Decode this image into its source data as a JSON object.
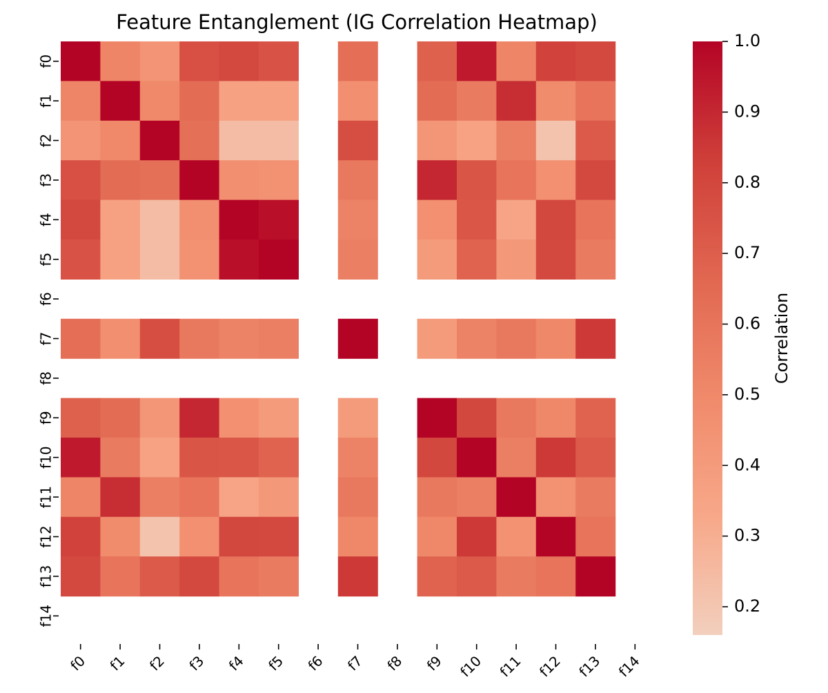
{
  "chart_data": {
    "type": "heatmap",
    "title": "Feature Entanglement (IG Correlation Heatmap)",
    "xlabel": "",
    "ylabel": "",
    "features": [
      "f0",
      "f1",
      "f2",
      "f3",
      "f4",
      "f5",
      "f6",
      "f7",
      "f8",
      "f9",
      "f10",
      "f11",
      "f12",
      "f13",
      "f14"
    ],
    "values": [
      [
        1.0,
        0.52,
        0.44,
        0.76,
        0.79,
        0.75,
        null,
        0.63,
        null,
        0.69,
        0.94,
        0.52,
        0.82,
        0.79,
        null
      ],
      [
        0.52,
        1.0,
        0.5,
        0.64,
        0.37,
        0.37,
        null,
        0.47,
        null,
        0.64,
        0.57,
        0.88,
        0.49,
        0.6,
        null
      ],
      [
        0.44,
        0.5,
        1.0,
        0.62,
        0.24,
        0.24,
        null,
        0.77,
        null,
        0.43,
        0.36,
        0.55,
        0.21,
        0.72,
        null
      ],
      [
        0.76,
        0.64,
        0.62,
        1.0,
        0.47,
        0.45,
        null,
        0.58,
        null,
        0.9,
        0.74,
        0.6,
        0.46,
        0.79,
        null
      ],
      [
        0.79,
        0.37,
        0.24,
        0.47,
        1.0,
        0.97,
        null,
        0.53,
        null,
        0.46,
        0.73,
        0.35,
        0.8,
        0.6,
        null
      ],
      [
        0.75,
        0.37,
        0.24,
        0.45,
        0.97,
        1.0,
        null,
        0.55,
        null,
        0.4,
        0.68,
        0.42,
        0.79,
        0.57,
        null
      ],
      [
        null,
        null,
        null,
        null,
        null,
        null,
        null,
        null,
        null,
        null,
        null,
        null,
        null,
        null,
        null
      ],
      [
        0.63,
        0.47,
        0.77,
        0.58,
        0.53,
        0.55,
        null,
        1.0,
        null,
        0.4,
        0.53,
        0.58,
        0.51,
        0.85,
        null
      ],
      [
        null,
        null,
        null,
        null,
        null,
        null,
        null,
        null,
        null,
        null,
        null,
        null,
        null,
        null,
        null
      ],
      [
        0.69,
        0.64,
        0.43,
        0.9,
        0.46,
        0.4,
        null,
        0.4,
        null,
        1.0,
        0.8,
        0.58,
        0.51,
        0.68,
        null
      ],
      [
        0.94,
        0.57,
        0.36,
        0.74,
        0.73,
        0.68,
        null,
        0.53,
        null,
        0.8,
        1.0,
        0.55,
        0.85,
        0.72,
        null
      ],
      [
        0.52,
        0.88,
        0.55,
        0.6,
        0.35,
        0.42,
        null,
        0.58,
        null,
        0.58,
        0.55,
        1.0,
        0.45,
        0.57,
        null
      ],
      [
        0.82,
        0.49,
        0.21,
        0.46,
        0.8,
        0.79,
        null,
        0.51,
        null,
        0.51,
        0.85,
        0.45,
        1.0,
        0.6,
        null
      ],
      [
        0.79,
        0.6,
        0.72,
        0.79,
        0.6,
        0.57,
        null,
        0.85,
        null,
        0.68,
        0.72,
        0.57,
        0.6,
        1.0,
        null
      ],
      [
        null,
        null,
        null,
        null,
        null,
        null,
        null,
        null,
        null,
        null,
        null,
        null,
        null,
        null,
        null
      ]
    ],
    "colorbar": {
      "label": "Correlation",
      "range": [
        0.16,
        1.0
      ],
      "ticks": [
        "0.2",
        "0.3",
        "0.4",
        "0.5",
        "0.6",
        "0.7",
        "0.8",
        "0.9",
        "1.0"
      ]
    },
    "colormap_stops": [
      "#f2cfbd",
      "#f7a889",
      "#f08a6b",
      "#e16751",
      "#cf3f39",
      "#b40426"
    ],
    "missing_color": "#ffffff",
    "grid": false,
    "legend": "right"
  }
}
